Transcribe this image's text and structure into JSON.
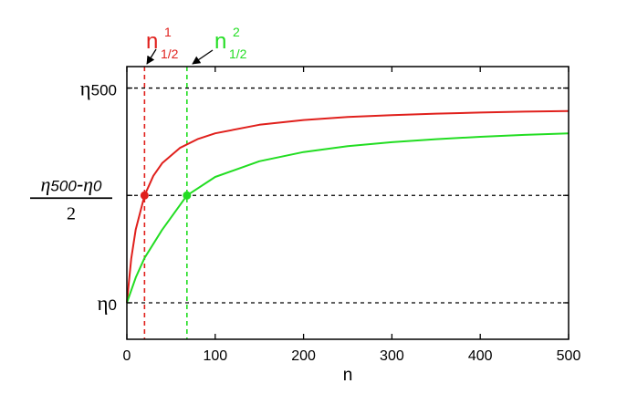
{
  "chart_data": {
    "type": "line",
    "title": "",
    "xlabel": "n",
    "ylabel": "",
    "xlim": [
      0,
      500
    ],
    "ylim": [
      -0.17,
      1.1
    ],
    "grid": false,
    "x_ticks": [
      0,
      100,
      200,
      300,
      400,
      500
    ],
    "y_ticks": [
      {
        "value": 0,
        "symbol": "η",
        "sub": "0"
      },
      {
        "value": 0.5,
        "num_symbol_a": "η",
        "num_sub_a": "500",
        "minus": "-",
        "num_symbol_b": "η",
        "num_sub_b": "0",
        "den": "2"
      },
      {
        "value": 1,
        "symbol": "η",
        "sub": "500"
      }
    ],
    "series": [
      {
        "color": "#e0201c",
        "x": [
          0,
          5,
          10,
          20,
          30,
          40,
          60,
          80,
          100,
          150,
          200,
          250,
          300,
          350,
          400,
          450,
          500
        ],
        "y": [
          0,
          0.206,
          0.341,
          0.5,
          0.591,
          0.65,
          0.721,
          0.762,
          0.789,
          0.829,
          0.851,
          0.865,
          0.874,
          0.881,
          0.886,
          0.89,
          0.893
        ]
      },
      {
        "color": "#22dd22",
        "x": [
          0,
          10,
          20,
          40,
          68,
          100,
          150,
          200,
          250,
          300,
          350,
          400,
          450,
          500
        ],
        "y": [
          0,
          0.117,
          0.209,
          0.34,
          0.5,
          0.586,
          0.659,
          0.702,
          0.729,
          0.748,
          0.762,
          0.773,
          0.782,
          0.789
        ]
      }
    ],
    "markers": [
      {
        "x": 20,
        "y": 0.5,
        "color": "#e0201c"
      },
      {
        "x": 68,
        "y": 0.5,
        "color": "#22dd22"
      }
    ],
    "hlines": [
      0,
      0.5,
      1
    ],
    "vlines": [
      {
        "x": 20,
        "color": "#e0201c"
      },
      {
        "x": 68,
        "color": "#22dd22"
      }
    ],
    "annotations": [
      {
        "base": "n",
        "sup": "1",
        "sub": "1/2",
        "color": "#e0201c",
        "target_x": 20
      },
      {
        "base": "n",
        "sup": "2",
        "sub": "1/2",
        "color": "#22dd22",
        "target_x": 68
      }
    ]
  }
}
